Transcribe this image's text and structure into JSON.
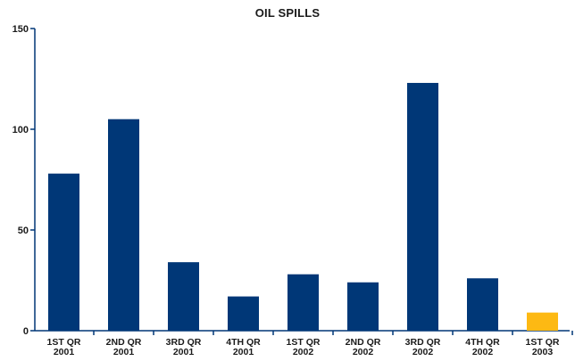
{
  "chart_data": {
    "type": "bar",
    "title": "OIL SPILLS",
    "xlabel": "",
    "ylabel": "",
    "categories": [
      [
        "1ST QR",
        "2001"
      ],
      [
        "2ND QR",
        "2001"
      ],
      [
        "3RD QR",
        "2001"
      ],
      [
        "4TH QR",
        "2001"
      ],
      [
        "1ST QR",
        "2002"
      ],
      [
        "2ND QR",
        "2002"
      ],
      [
        "3RD QR",
        "2002"
      ],
      [
        "4TH QR",
        "2002"
      ],
      [
        "1ST QR",
        "2003"
      ]
    ],
    "values": [
      78,
      105,
      34,
      17,
      28,
      24,
      123,
      26,
      9
    ],
    "bar_colors": [
      "#003777",
      "#003777",
      "#003777",
      "#003777",
      "#003777",
      "#003777",
      "#003777",
      "#003777",
      "#FDB913"
    ],
    "ylim": [
      0,
      150
    ],
    "yticks": [
      0,
      50,
      100,
      150
    ],
    "grid": false,
    "axis_color": "#003777"
  }
}
